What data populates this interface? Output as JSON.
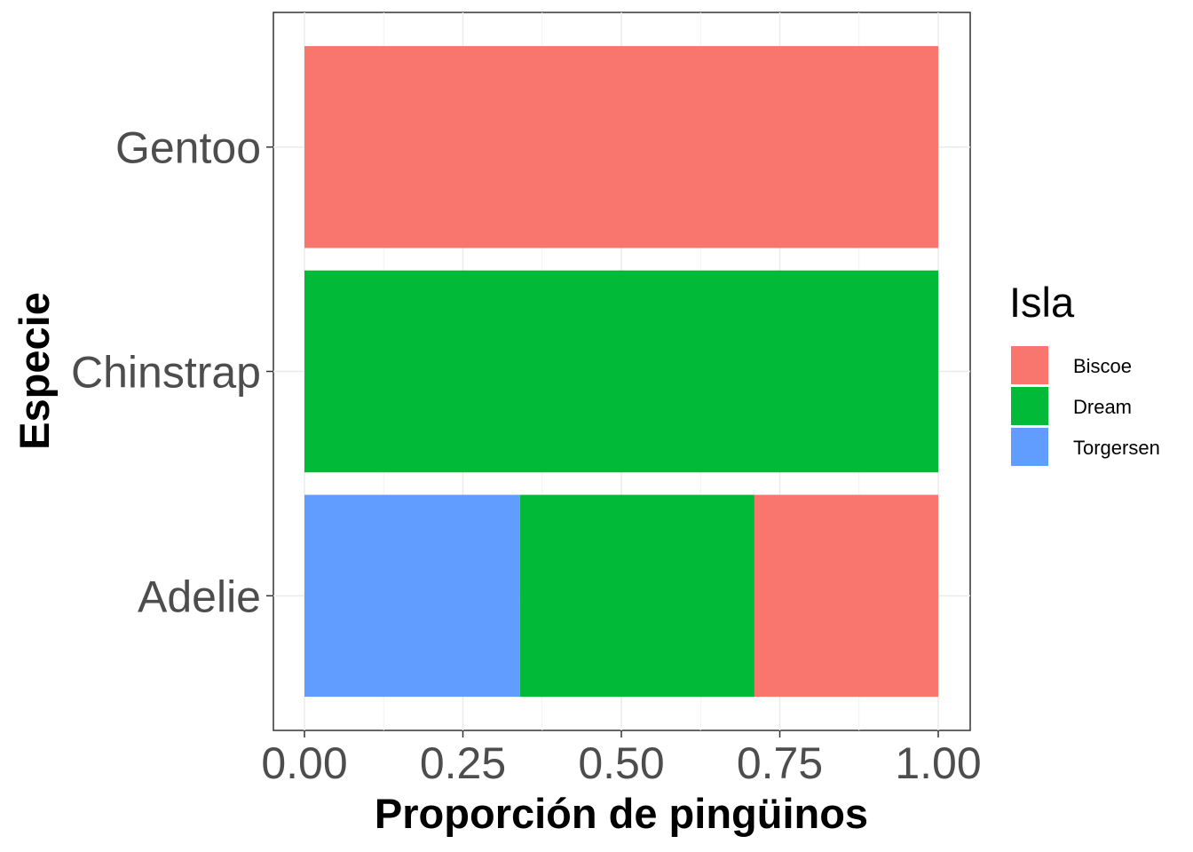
{
  "chart_data": {
    "type": "bar",
    "orientation": "horizontal",
    "stacked": true,
    "title": "",
    "xlabel": "Proporción de pingüinos",
    "ylabel": "Especie",
    "xlim": [
      0,
      1
    ],
    "x_ticks": [
      "0.00",
      "0.25",
      "0.50",
      "0.75",
      "1.00"
    ],
    "x_tick_values": [
      0,
      0.25,
      0.5,
      0.75,
      1.0
    ],
    "categories": [
      "Adelie",
      "Chinstrap",
      "Gentoo"
    ],
    "series": [
      {
        "name": "Torgersen",
        "color": "#619CFF",
        "values": [
          0.34,
          0,
          0
        ]
      },
      {
        "name": "Dream",
        "color": "#00BA38",
        "values": [
          0.37,
          1.0,
          0
        ]
      },
      {
        "name": "Biscoe",
        "color": "#F8766D",
        "values": [
          0.29,
          0,
          1.0
        ]
      }
    ],
    "grid": true,
    "legend": {
      "title": "Isla",
      "placement": "right",
      "items": [
        {
          "label": "Biscoe",
          "color": "#F8766D"
        },
        {
          "label": "Dream",
          "color": "#00BA38"
        },
        {
          "label": "Torgersen",
          "color": "#619CFF"
        }
      ]
    }
  }
}
